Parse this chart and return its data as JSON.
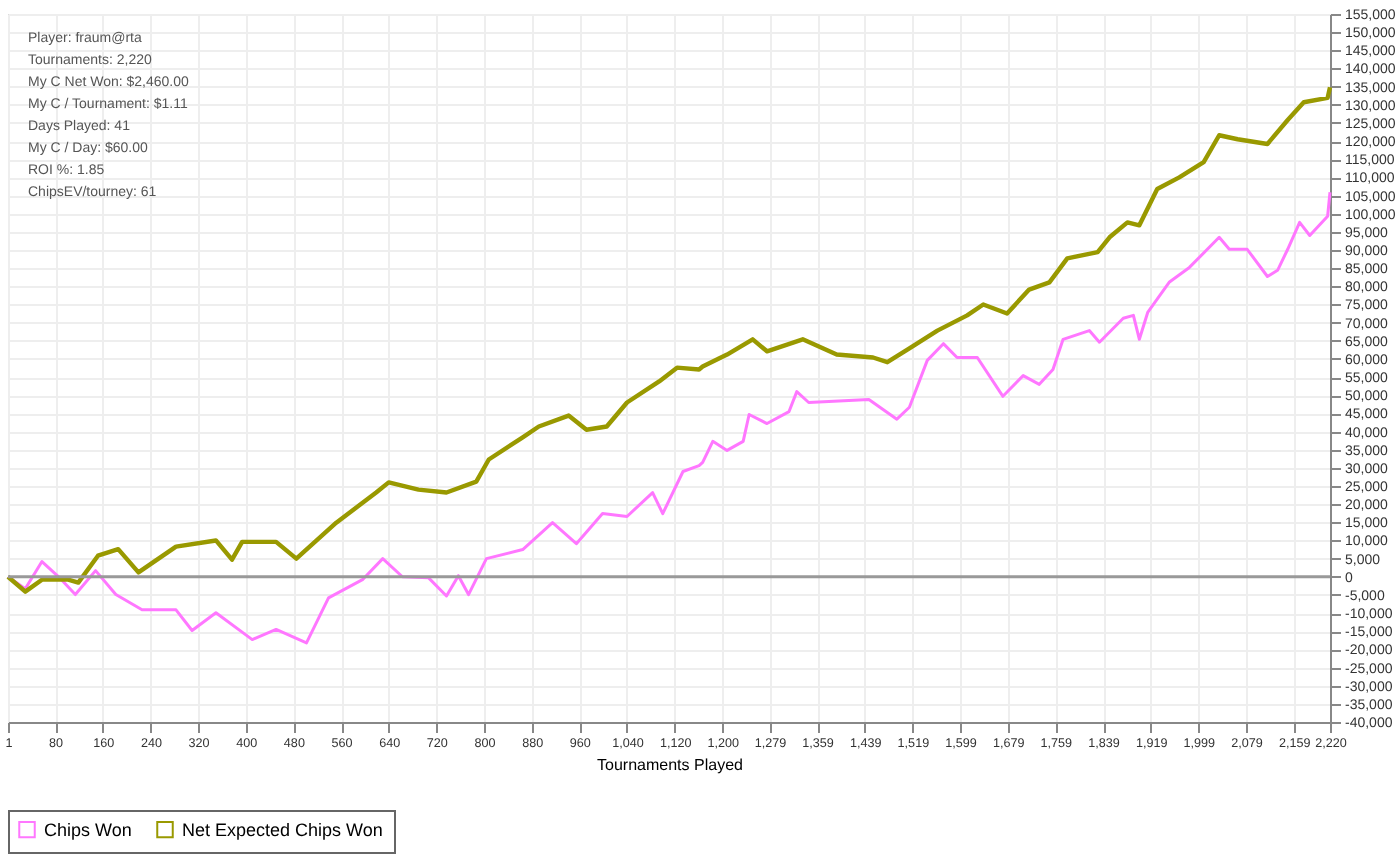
{
  "chart_data": {
    "type": "line",
    "xlabel": "Tournaments Played",
    "annotations": [
      "Player: fraum@rta",
      "Tournaments: 2,220",
      "My C Net Won: $2,460.00",
      "My C / Tournament: $1.11",
      "Days Played: 41",
      "My C / Day: $60.00",
      "ROI %: 1.85",
      "ChipsEV/tourney: 61"
    ],
    "xlim": [
      1,
      2220
    ],
    "xticks": [
      1,
      80,
      160,
      240,
      320,
      400,
      480,
      560,
      640,
      720,
      800,
      880,
      960,
      {
        "value": 1040,
        "label": "1,040"
      },
      {
        "value": 1120,
        "label": "1,120"
      },
      {
        "value": 1200,
        "label": "1,200"
      },
      {
        "value": 1279,
        "label": "1,279"
      },
      {
        "value": 1359,
        "label": "1,359"
      },
      {
        "value": 1439,
        "label": "1,439"
      },
      {
        "value": 1519,
        "label": "1,519"
      },
      {
        "value": 1599,
        "label": "1,599"
      },
      {
        "value": 1679,
        "label": "1,679"
      },
      {
        "value": 1759,
        "label": "1,759"
      },
      {
        "value": 1839,
        "label": "1,839"
      },
      {
        "value": 1919,
        "label": "1,919"
      },
      {
        "value": 1999,
        "label": "1,999"
      },
      {
        "value": 2079,
        "label": "2,079"
      },
      {
        "value": 2159,
        "label": "2,159"
      },
      {
        "value": 2220,
        "label": "2,220"
      }
    ],
    "ylim": [
      -40000,
      155000
    ],
    "yticks": [
      {
        "value": -40000,
        "label": "-40,000"
      },
      {
        "value": -35000,
        "label": "-35,000"
      },
      {
        "value": -30000,
        "label": "-30,000"
      },
      {
        "value": -25000,
        "label": "-25,000"
      },
      {
        "value": -20000,
        "label": "-20,000"
      },
      {
        "value": -15000,
        "label": "-15,000"
      },
      {
        "value": -10000,
        "label": "-10,000"
      },
      {
        "value": -5000,
        "label": "-5,000"
      },
      0,
      {
        "value": 5000,
        "label": "5,000"
      },
      {
        "value": 10000,
        "label": "10,000"
      },
      {
        "value": 15000,
        "label": "15,000"
      },
      {
        "value": 20000,
        "label": "20,000"
      },
      {
        "value": 25000,
        "label": "25,000"
      },
      {
        "value": 30000,
        "label": "30,000"
      },
      {
        "value": 35000,
        "label": "35,000"
      },
      {
        "value": 40000,
        "label": "40,000"
      },
      {
        "value": 45000,
        "label": "45,000"
      },
      {
        "value": 50000,
        "label": "50,000"
      },
      {
        "value": 55000,
        "label": "55,000"
      },
      {
        "value": 60000,
        "label": "60,000"
      },
      {
        "value": 65000,
        "label": "65,000"
      },
      {
        "value": 70000,
        "label": "70,000"
      },
      {
        "value": 75000,
        "label": "75,000"
      },
      {
        "value": 80000,
        "label": "80,000"
      },
      {
        "value": 85000,
        "label": "85,000"
      },
      {
        "value": 90000,
        "label": "90,000"
      },
      {
        "value": 95000,
        "label": "95,000"
      },
      {
        "value": 100000,
        "label": "100,000"
      },
      {
        "value": 105000,
        "label": "105,000"
      },
      {
        "value": 110000,
        "label": "110,000"
      },
      {
        "value": 115000,
        "label": "115,000"
      },
      {
        "value": 120000,
        "label": "120,000"
      },
      {
        "value": 125000,
        "label": "125,000"
      },
      {
        "value": 130000,
        "label": "130,000"
      },
      {
        "value": 135000,
        "label": "135,000"
      },
      {
        "value": 140000,
        "label": "140,000"
      },
      {
        "value": 145000,
        "label": "145,000"
      },
      {
        "value": 150000,
        "label": "150,000"
      },
      {
        "value": 155000,
        "label": "155,000"
      }
    ],
    "grid": true,
    "legend": "bottom",
    "marker": "none",
    "line_style": "solid",
    "ref_lines": [
      {
        "axis": "y",
        "value": 0,
        "color": "#999999"
      }
    ],
    "series": [
      {
        "name": "Chips Won",
        "color": "#ff77ff",
        "x": [
          1,
          30,
          58,
          86,
          114,
          148,
          182,
          226,
          283,
          310,
          350,
          411,
          451,
          502,
          539,
          596,
          630,
          663,
          707,
          737,
          757,
          774,
          804,
          865,
          915,
          955,
          999,
          1040,
          1083,
          1100,
          1134,
          1161,
          1167,
          1184,
          1208,
          1235,
          1245,
          1275,
          1312,
          1325,
          1345,
          1446,
          1493,
          1514,
          1544,
          1571,
          1594,
          1628,
          1671,
          1705,
          1732,
          1755,
          1772,
          1816,
          1833,
          1873,
          1890,
          1900,
          1914,
          1950,
          1984,
          2034,
          2051,
          2081,
          2115,
          2132,
          2149,
          2169,
          2186,
          2216,
          2220
        ],
        "values": [
          0,
          -3300,
          4200,
          0,
          -4900,
          1700,
          -4900,
          -9100,
          -9100,
          -14800,
          -9900,
          -17300,
          -14500,
          -18200,
          -5800,
          -800,
          5000,
          0,
          -300,
          -5300,
          300,
          -4900,
          5000,
          7500,
          14900,
          9100,
          17400,
          16600,
          23200,
          17400,
          29000,
          30600,
          31500,
          37300,
          34800,
          37300,
          44700,
          42200,
          45500,
          51000,
          48000,
          48800,
          43400,
          46700,
          59600,
          64200,
          60400,
          60400,
          49700,
          55400,
          53000,
          57100,
          65400,
          67800,
          64600,
          71200,
          72000,
          65400,
          72800,
          81100,
          85200,
          93500,
          90200,
          90200,
          82700,
          84400,
          90200,
          97600,
          94000,
          99300,
          105900
        ]
      },
      {
        "name": "Net Expected Chips Won",
        "color": "#999900",
        "x": [
          1,
          30,
          58,
          102,
          119,
          152,
          186,
          220,
          283,
          350,
          377,
          394,
          451,
          485,
          552,
          619,
          640,
          690,
          737,
          787,
          808,
          865,
          892,
          942,
          972,
          1006,
          1040,
          1094,
          1124,
          1161,
          1167,
          1208,
          1251,
          1275,
          1335,
          1392,
          1453,
          1477,
          1514,
          1561,
          1611,
          1638,
          1678,
          1715,
          1749,
          1779,
          1830,
          1850,
          1880,
          1900,
          1930,
          1967,
          2008,
          2034,
          2065,
          2115,
          2149,
          2176,
          2216,
          2220
        ],
        "values": [
          0,
          -4100,
          -800,
          -800,
          -1600,
          5800,
          7600,
          1200,
          8300,
          10000,
          4700,
          9600,
          9600,
          5000,
          14900,
          23200,
          26000,
          24000,
          23200,
          26200,
          32300,
          38400,
          41400,
          44400,
          40500,
          41400,
          48000,
          53800,
          57600,
          57100,
          57900,
          61200,
          65400,
          62100,
          65400,
          61200,
          60400,
          59100,
          62900,
          67800,
          72000,
          75000,
          72500,
          79100,
          81100,
          87700,
          89400,
          93500,
          97600,
          96800,
          106800,
          110000,
          114200,
          121600,
          120500,
          119200,
          125800,
          130700,
          131900,
          134800
        ]
      }
    ]
  }
}
